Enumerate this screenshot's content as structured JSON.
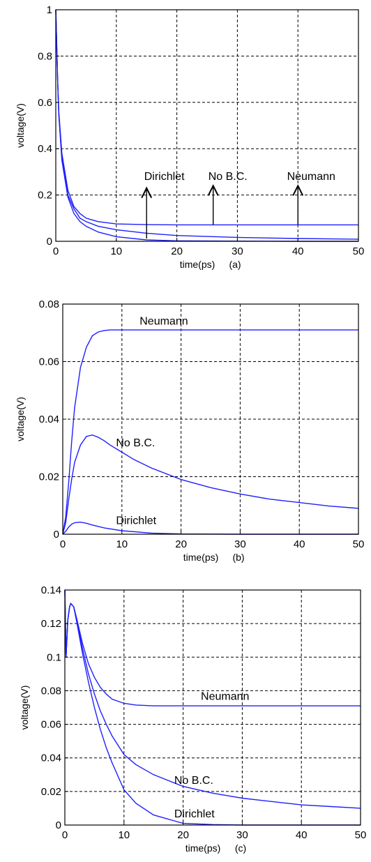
{
  "colors": {
    "line": "#1f1fff",
    "axis": "#000000",
    "grid": "#000000",
    "background": "#ffffff"
  },
  "chart_data": [
    {
      "type": "line",
      "panel": "(a)",
      "xlabel": "time(ps)",
      "panel_label": "(a)",
      "ylabel": "voltage(V)",
      "xlim": [
        0,
        50
      ],
      "ylim": [
        0,
        1
      ],
      "xticks": [
        0,
        10,
        20,
        30,
        40,
        50
      ],
      "yticks": [
        0,
        0.2,
        0.4,
        0.6,
        0.8,
        1
      ],
      "ytick_labels": [
        "0",
        "0.2",
        "0.4",
        "0.6",
        "0.8",
        "1"
      ],
      "grid": true,
      "series": [
        {
          "name": "Neumann",
          "x": [
            0,
            0.3,
            0.5,
            1,
            2,
            3,
            4,
            5,
            7,
            10,
            15,
            20,
            30,
            40,
            50
          ],
          "y": [
            1.0,
            0.7,
            0.56,
            0.38,
            0.22,
            0.15,
            0.12,
            0.1,
            0.085,
            0.075,
            0.072,
            0.071,
            0.071,
            0.071,
            0.071
          ]
        },
        {
          "name": "No B.C.",
          "x": [
            0,
            0.3,
            0.5,
            1,
            2,
            3,
            4,
            5,
            7,
            10,
            15,
            20,
            30,
            40,
            50
          ],
          "y": [
            1.0,
            0.7,
            0.55,
            0.36,
            0.2,
            0.14,
            0.1,
            0.085,
            0.065,
            0.05,
            0.035,
            0.025,
            0.017,
            0.012,
            0.009
          ]
        },
        {
          "name": "Dirichlet",
          "x": [
            0,
            0.3,
            0.5,
            1,
            2,
            3,
            4,
            5,
            7,
            10,
            15,
            20,
            30,
            40,
            50
          ],
          "y": [
            1.0,
            0.7,
            0.55,
            0.35,
            0.19,
            0.12,
            0.085,
            0.065,
            0.04,
            0.02,
            0.006,
            0.002,
            0.001,
            0.0,
            0.0
          ]
        }
      ],
      "annotations": [
        {
          "text": "Dirichlet",
          "tx": 14.6,
          "ty": 0.265,
          "arrow_x": 15,
          "arrow_from": 0.012,
          "arrow_to": 0.23
        },
        {
          "text": "No B.C.",
          "tx": 25.2,
          "ty": 0.265,
          "arrow_x": 26,
          "arrow_from": 0.072,
          "arrow_to": 0.24
        },
        {
          "text": "Neumann",
          "tx": 38.2,
          "ty": 0.265,
          "arrow_x": 40,
          "arrow_from": 0.072,
          "arrow_to": 0.24
        }
      ]
    },
    {
      "type": "line",
      "panel": "(b)",
      "xlabel": "time(ps)",
      "panel_label": "(b)",
      "ylabel": "voltage(V)",
      "xlim": [
        0,
        50
      ],
      "ylim": [
        0,
        0.08
      ],
      "xticks": [
        0,
        10,
        20,
        30,
        40,
        50
      ],
      "yticks": [
        0,
        0.02,
        0.04,
        0.06,
        0.08
      ],
      "ytick_labels": [
        "0",
        "0.02",
        "0.04",
        "0.06",
        "0.08"
      ],
      "grid": true,
      "series": [
        {
          "name": "Neumann",
          "x": [
            0,
            0.5,
            1,
            1.5,
            2,
            3,
            4,
            5,
            6,
            7,
            8,
            10,
            15,
            20,
            30,
            40,
            50
          ],
          "y": [
            0,
            0.006,
            0.018,
            0.032,
            0.044,
            0.058,
            0.065,
            0.069,
            0.0703,
            0.0708,
            0.071,
            0.071,
            0.071,
            0.071,
            0.071,
            0.071,
            0.071
          ]
        },
        {
          "name": "No B.C.",
          "x": [
            0,
            0.5,
            1,
            1.5,
            2,
            3,
            4,
            5,
            6,
            7,
            8,
            10,
            12,
            15,
            20,
            25,
            30,
            35,
            40,
            45,
            50
          ],
          "y": [
            0,
            0.004,
            0.012,
            0.019,
            0.025,
            0.031,
            0.034,
            0.0345,
            0.0337,
            0.0325,
            0.031,
            0.0285,
            0.026,
            0.023,
            0.019,
            0.0162,
            0.014,
            0.0122,
            0.011,
            0.0098,
            0.009
          ]
        },
        {
          "name": "Dirichlet",
          "x": [
            0,
            0.5,
            1,
            1.5,
            2,
            3,
            4,
            5,
            7,
            10,
            15,
            20,
            30,
            40,
            50
          ],
          "y": [
            0,
            0.001,
            0.0025,
            0.0035,
            0.004,
            0.0042,
            0.0038,
            0.0032,
            0.0022,
            0.0012,
            0.0004,
            0.0001,
            0,
            0,
            0
          ]
        }
      ],
      "annotations": [
        {
          "text": "Neumann",
          "tx": 13.0,
          "ty": 0.0728
        },
        {
          "text": "No B.C.",
          "tx": 9.0,
          "ty": 0.0305
        },
        {
          "text": "Dirichlet",
          "tx": 9.0,
          "ty": 0.0035
        }
      ]
    },
    {
      "type": "line",
      "panel": "(c)",
      "xlabel": "time(ps)",
      "panel_label": "(c)",
      "ylabel": "voltage(V)",
      "xlim": [
        0,
        50
      ],
      "ylim": [
        0,
        0.14
      ],
      "xticks": [
        0,
        10,
        20,
        30,
        40,
        50
      ],
      "yticks": [
        0,
        0.02,
        0.04,
        0.06,
        0.08,
        0.1,
        0.12,
        0.14
      ],
      "ytick_labels": [
        "0",
        "0.02",
        "0.04",
        "0.06",
        "0.08",
        "0.1",
        "0.12",
        "0.14"
      ],
      "grid": true,
      "series": [
        {
          "name": "Neumann",
          "x": [
            0,
            0.2,
            0.5,
            0.8,
            1,
            1.5,
            2,
            3,
            4,
            5,
            6,
            7,
            8,
            10,
            12,
            15,
            20,
            30,
            40,
            50
          ],
          "y": [
            0.14,
            0.1,
            0.122,
            0.13,
            0.132,
            0.13,
            0.123,
            0.108,
            0.096,
            0.088,
            0.082,
            0.078,
            0.075,
            0.0725,
            0.0715,
            0.071,
            0.071,
            0.071,
            0.071,
            0.071
          ]
        },
        {
          "name": "No B.C.",
          "x": [
            0,
            0.2,
            0.5,
            0.8,
            1,
            1.5,
            2,
            3,
            4,
            5,
            6,
            7,
            8,
            10,
            12,
            15,
            20,
            25,
            30,
            35,
            40,
            45,
            50
          ],
          "y": [
            0.14,
            0.1,
            0.122,
            0.13,
            0.132,
            0.13,
            0.122,
            0.105,
            0.09,
            0.078,
            0.068,
            0.06,
            0.053,
            0.042,
            0.036,
            0.03,
            0.023,
            0.019,
            0.016,
            0.014,
            0.012,
            0.011,
            0.01
          ]
        },
        {
          "name": "Dirichlet",
          "x": [
            0,
            0.2,
            0.5,
            0.8,
            1,
            1.5,
            2,
            3,
            4,
            5,
            6,
            7,
            8,
            10,
            12,
            15,
            20,
            25,
            30,
            40,
            50
          ],
          "y": [
            0.14,
            0.1,
            0.122,
            0.13,
            0.132,
            0.13,
            0.121,
            0.102,
            0.085,
            0.07,
            0.057,
            0.046,
            0.037,
            0.021,
            0.013,
            0.006,
            0.001,
            0.0003,
            0,
            0,
            0
          ]
        }
      ],
      "annotations": [
        {
          "text": "Neumann",
          "tx": 23.0,
          "ty": 0.0745
        },
        {
          "text": "No B.C.",
          "tx": 18.5,
          "ty": 0.0245
        },
        {
          "text": "Dirichlet",
          "tx": 18.5,
          "ty": 0.0045
        }
      ]
    }
  ]
}
